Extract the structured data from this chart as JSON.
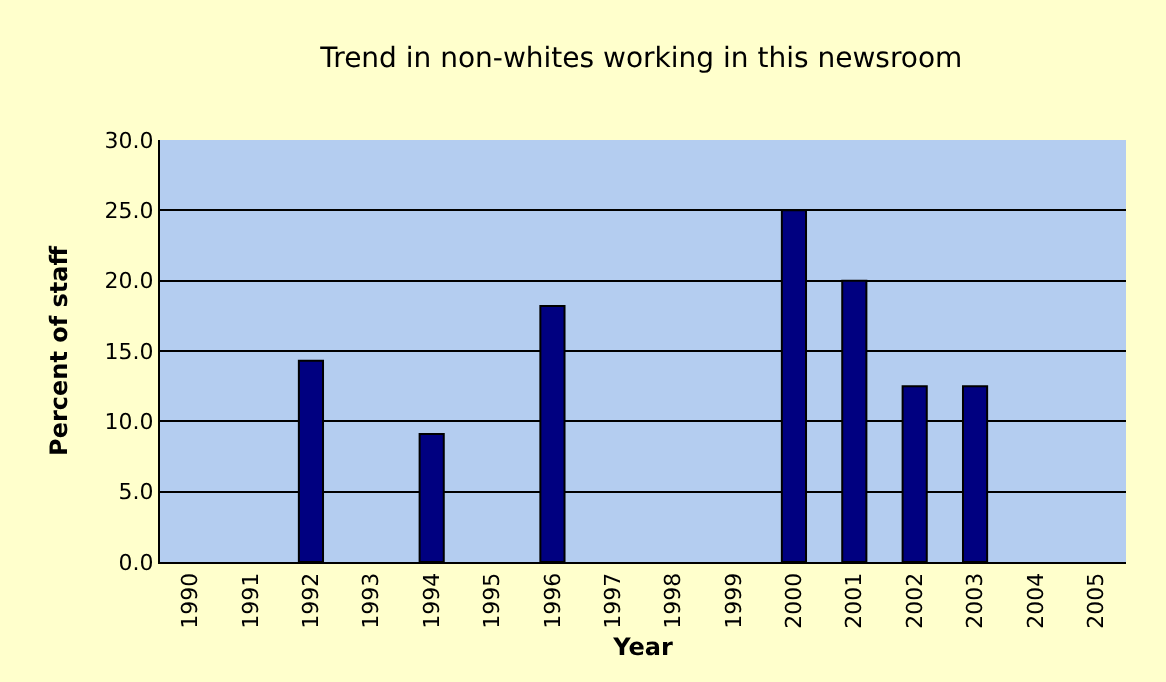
{
  "chart_data": {
    "type": "bar",
    "title": "Trend in non-whites working in this newsroom",
    "xlabel": "Year",
    "ylabel": "Percent of staff",
    "categories": [
      "1990",
      "1991",
      "1992",
      "1993",
      "1994",
      "1995",
      "1996",
      "1997",
      "1998",
      "1999",
      "2000",
      "2001",
      "2002",
      "2003",
      "2004",
      "2005"
    ],
    "values": [
      null,
      null,
      14.3,
      null,
      9.1,
      null,
      18.2,
      null,
      null,
      null,
      25.0,
      20.0,
      12.5,
      12.5,
      null,
      null
    ],
    "color": "#000080",
    "ylim": [
      0,
      30
    ],
    "yticks": [
      {
        "value": 0,
        "label": "0.0"
      },
      {
        "value": 5,
        "label": "5.0"
      },
      {
        "value": 10,
        "label": "10.0"
      },
      {
        "value": 15,
        "label": "15.0"
      },
      {
        "value": 20,
        "label": "20.0"
      },
      {
        "value": 25,
        "label": "25.0"
      },
      {
        "value": 30,
        "label": "30.0"
      }
    ],
    "grid": "y"
  }
}
